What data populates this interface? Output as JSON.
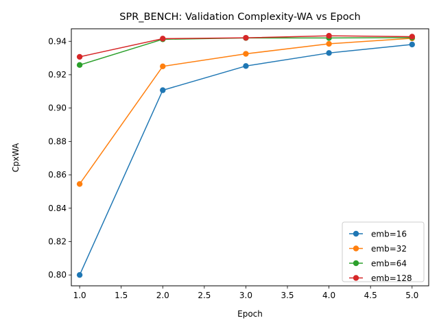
{
  "chart_data": {
    "type": "line",
    "title": "SPR_BENCH: Validation Complexity-WA vs Epoch",
    "xlabel": "Epoch",
    "ylabel": "CpxWA",
    "xlim": [
      0.9,
      5.2
    ],
    "ylim": [
      0.7935,
      0.9475
    ],
    "x_ticks": [
      "1.0",
      "1.5",
      "2.0",
      "2.5",
      "3.0",
      "3.5",
      "4.0",
      "4.5",
      "5.0"
    ],
    "y_ticks": [
      "0.80",
      "0.82",
      "0.84",
      "0.86",
      "0.88",
      "0.90",
      "0.92",
      "0.94"
    ],
    "grid": false,
    "legend_position": "lower-right",
    "x": [
      1,
      2,
      3,
      4,
      5
    ],
    "series": [
      {
        "name": "emb=16",
        "color": "#1f77b4",
        "values": [
          0.8,
          0.9107,
          0.9252,
          0.933,
          0.9381
        ]
      },
      {
        "name": "emb=32",
        "color": "#ff7f0e",
        "values": [
          0.8545,
          0.925,
          0.9325,
          0.9385,
          0.9418
        ]
      },
      {
        "name": "emb=64",
        "color": "#2ca02c",
        "values": [
          0.9258,
          0.9412,
          0.942,
          0.942,
          0.9422
        ]
      },
      {
        "name": "emb=128",
        "color": "#d62728",
        "values": [
          0.9307,
          0.9416,
          0.9421,
          0.9433,
          0.9428
        ]
      }
    ]
  }
}
